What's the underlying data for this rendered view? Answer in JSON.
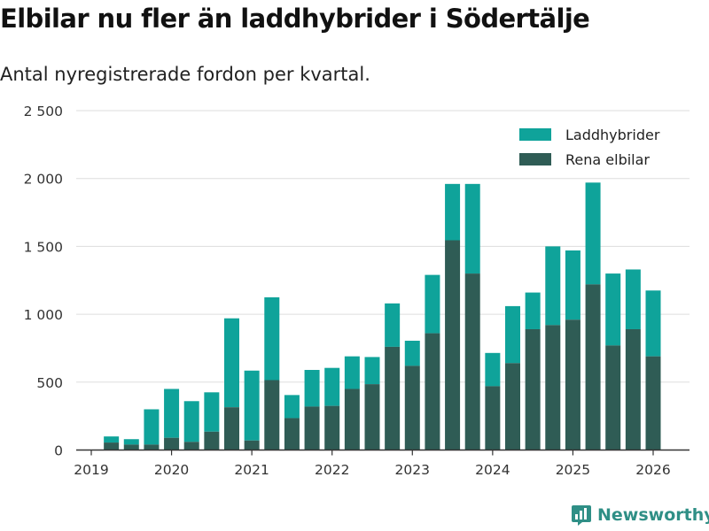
{
  "header": {
    "title": "Elbilar nu fler än laddhybrider i Södertälje",
    "subtitle": "Antal nyregistrerade fordon per kvartal."
  },
  "brand": {
    "name": "Newsworthy"
  },
  "colors": {
    "phev": "#0fa39a",
    "bev": "#2f5c55",
    "grid": "#dddddd",
    "axis": "#333333",
    "brand": "#2f8f86"
  },
  "chart_data": {
    "type": "bar",
    "stacked": true,
    "title": "Elbilar nu fler än laddhybrider i Södertälje",
    "subtitle": "Antal nyregistrerade fordon per kvartal.",
    "xlabel": "",
    "ylabel": "",
    "ylim": [
      0,
      2500
    ],
    "yticks": [
      0,
      500,
      1000,
      1500,
      2000,
      2500
    ],
    "ytick_labels": [
      "0",
      "500",
      "1 000",
      "1 500",
      "2 000",
      "2 500"
    ],
    "xticks": [
      "2019",
      "2020",
      "2021",
      "2022",
      "2023",
      "2024",
      "2025",
      "2026"
    ],
    "legend_position": "top-right",
    "categories": [
      "2019 Q2",
      "2019 Q3",
      "2019 Q4",
      "2020 Q1",
      "2020 Q2",
      "2020 Q3",
      "2020 Q4",
      "2021 Q1",
      "2021 Q2",
      "2021 Q3",
      "2021 Q4",
      "2022 Q1",
      "2022 Q2",
      "2022 Q3",
      "2022 Q4",
      "2023 Q1",
      "2023 Q2",
      "2023 Q3",
      "2023 Q4",
      "2024 Q1",
      "2024 Q2",
      "2024 Q3",
      "2024 Q4",
      "2025 Q1",
      "2025 Q2",
      "2025 Q3",
      "2025 Q4",
      "2026 Q1"
    ],
    "series": [
      {
        "name": "Rena elbilar",
        "color": "#2f5c55",
        "values": [
          55,
          40,
          40,
          90,
          60,
          135,
          315,
          70,
          515,
          235,
          320,
          325,
          450,
          485,
          760,
          620,
          860,
          1545,
          1300,
          470,
          640,
          890,
          920,
          960,
          1220,
          770,
          890,
          690
        ]
      },
      {
        "name": "Laddhybrider",
        "color": "#0fa39a",
        "values": [
          45,
          40,
          260,
          360,
          300,
          290,
          655,
          515,
          610,
          170,
          270,
          280,
          240,
          200,
          320,
          185,
          430,
          415,
          660,
          245,
          420,
          270,
          580,
          510,
          750,
          530,
          440,
          485
        ]
      }
    ]
  }
}
